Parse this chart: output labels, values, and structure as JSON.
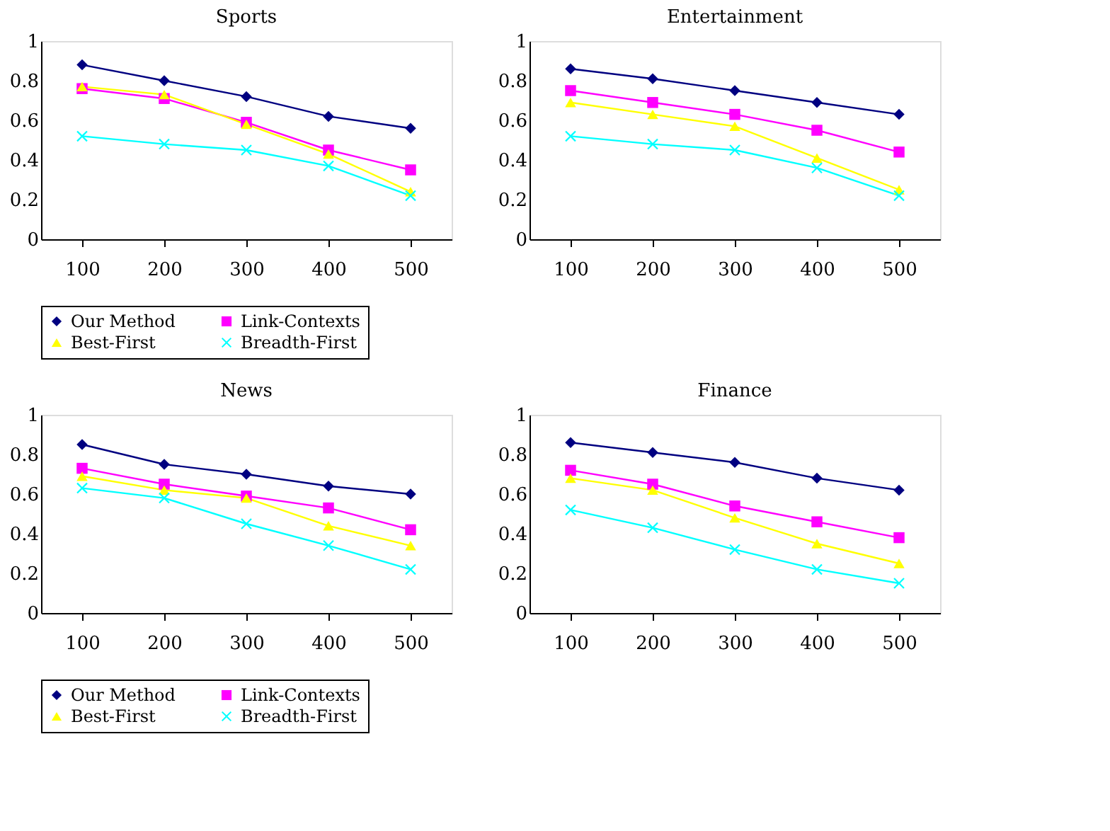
{
  "chart_data": [
    {
      "type": "line",
      "title": "Sports",
      "categories": [
        "100",
        "200",
        "300",
        "400",
        "500"
      ],
      "ylim": [
        0,
        1
      ],
      "yticks": [
        0,
        0.2,
        0.4,
        0.6,
        0.8,
        1
      ],
      "grid": false,
      "legend": "bottom",
      "line_style": "solid",
      "series": [
        {
          "name": "Our Method",
          "color": "#000080",
          "marker": "diamond",
          "values": [
            0.88,
            0.8,
            0.72,
            0.62,
            0.56
          ]
        },
        {
          "name": "Link-Contexts",
          "color": "#ff00ff",
          "marker": "square",
          "values": [
            0.76,
            0.71,
            0.59,
            0.45,
            0.35
          ]
        },
        {
          "name": "Best-First",
          "color": "#ffff00",
          "marker": "triangle",
          "values": [
            0.77,
            0.73,
            0.58,
            0.43,
            0.24
          ]
        },
        {
          "name": "Breadth-First",
          "color": "#00ffff",
          "marker": "cross",
          "values": [
            0.52,
            0.48,
            0.45,
            0.37,
            0.22
          ]
        }
      ]
    },
    {
      "type": "line",
      "title": "Entertainment",
      "categories": [
        "100",
        "200",
        "300",
        "400",
        "500"
      ],
      "ylim": [
        0,
        1
      ],
      "yticks": [
        0,
        0.2,
        0.4,
        0.6,
        0.8,
        1
      ],
      "grid": false,
      "legend": "bottom",
      "line_style": "solid",
      "series": [
        {
          "name": "Our Method",
          "color": "#000080",
          "marker": "diamond",
          "values": [
            0.86,
            0.81,
            0.75,
            0.69,
            0.63
          ]
        },
        {
          "name": "Link-Contexts",
          "color": "#ff00ff",
          "marker": "square",
          "values": [
            0.75,
            0.69,
            0.63,
            0.55,
            0.44
          ]
        },
        {
          "name": "Best-First",
          "color": "#ffff00",
          "marker": "triangle",
          "values": [
            0.69,
            0.63,
            0.57,
            0.41,
            0.25
          ]
        },
        {
          "name": "Breadth-First",
          "color": "#00ffff",
          "marker": "cross",
          "values": [
            0.52,
            0.48,
            0.45,
            0.36,
            0.22
          ]
        }
      ]
    },
    {
      "type": "line",
      "title": "News",
      "categories": [
        "100",
        "200",
        "300",
        "400",
        "500"
      ],
      "ylim": [
        0,
        1
      ],
      "yticks": [
        0,
        0.2,
        0.4,
        0.6,
        0.8,
        1
      ],
      "grid": false,
      "legend": "bottom",
      "line_style": "solid",
      "series": [
        {
          "name": "Our Method",
          "color": "#000080",
          "marker": "diamond",
          "values": [
            0.85,
            0.75,
            0.7,
            0.64,
            0.6
          ]
        },
        {
          "name": "Link-Contexts",
          "color": "#ff00ff",
          "marker": "square",
          "values": [
            0.73,
            0.65,
            0.59,
            0.53,
            0.42
          ]
        },
        {
          "name": "Best-First",
          "color": "#ffff00",
          "marker": "triangle",
          "values": [
            0.69,
            0.62,
            0.58,
            0.44,
            0.34
          ]
        },
        {
          "name": "Breadth-First",
          "color": "#00ffff",
          "marker": "cross",
          "values": [
            0.63,
            0.58,
            0.45,
            0.34,
            0.22
          ]
        }
      ]
    },
    {
      "type": "line",
      "title": "Finance",
      "categories": [
        "100",
        "200",
        "300",
        "400",
        "500"
      ],
      "ylim": [
        0,
        1
      ],
      "yticks": [
        0,
        0.2,
        0.4,
        0.6,
        0.8,
        1
      ],
      "grid": false,
      "legend": "bottom",
      "line_style": "solid",
      "series": [
        {
          "name": "Our Method",
          "color": "#000080",
          "marker": "diamond",
          "values": [
            0.86,
            0.81,
            0.76,
            0.68,
            0.62
          ]
        },
        {
          "name": "Link-Contexts",
          "color": "#ff00ff",
          "marker": "square",
          "values": [
            0.72,
            0.65,
            0.54,
            0.46,
            0.38
          ]
        },
        {
          "name": "Best-First",
          "color": "#ffff00",
          "marker": "triangle",
          "values": [
            0.68,
            0.62,
            0.48,
            0.35,
            0.25
          ]
        },
        {
          "name": "Breadth-First",
          "color": "#00ffff",
          "marker": "cross",
          "values": [
            0.52,
            0.43,
            0.32,
            0.22,
            0.15
          ]
        }
      ]
    }
  ]
}
